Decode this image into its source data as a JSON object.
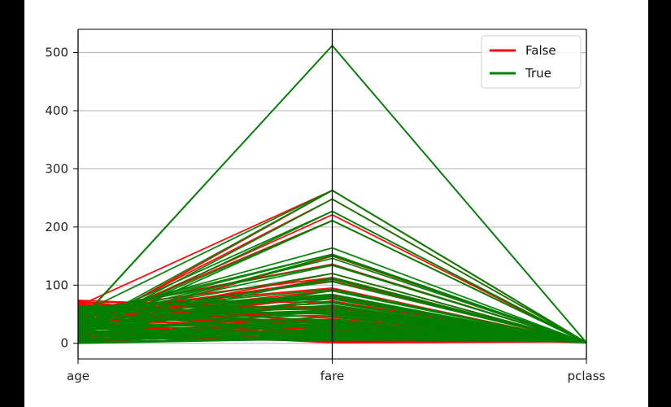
{
  "chart_data": {
    "type": "parallel_coordinates",
    "title": "",
    "xlabel": "",
    "ylabel": "",
    "categories": [
      "age",
      "fare",
      "pclass"
    ],
    "ylim": [
      -27,
      540
    ],
    "yticks": [
      0,
      100,
      200,
      300,
      400,
      500
    ],
    "grid": true,
    "legend": {
      "placement": "top-right",
      "entries": [
        {
          "name": "False",
          "color": "#ff0000"
        },
        {
          "name": "True",
          "color": "#008000"
        }
      ]
    },
    "series": [
      {
        "name": "False",
        "color": "#ff0000",
        "lines": [
          [
            22,
            7,
            3
          ],
          [
            35,
            8,
            3
          ],
          [
            54,
            52,
            1
          ],
          [
            2,
            21,
            3
          ],
          [
            20,
            8,
            3
          ],
          [
            39,
            31,
            3
          ],
          [
            14,
            8,
            3
          ],
          [
            2,
            29,
            3
          ],
          [
            31,
            18,
            2
          ],
          [
            35,
            26,
            2
          ],
          [
            34,
            13,
            2
          ],
          [
            28,
            8,
            3
          ],
          [
            8,
            21,
            3
          ],
          [
            19,
            263,
            1
          ],
          [
            40,
            28,
            1
          ],
          [
            66,
            11,
            2
          ],
          [
            28,
            82,
            1
          ],
          [
            42,
            52,
            1
          ],
          [
            21,
            9,
            3
          ],
          [
            18,
            11,
            2
          ],
          [
            40,
            27,
            1
          ],
          [
            24,
            248,
            1
          ],
          [
            46,
            61,
            1
          ],
          [
            65,
            62,
            1
          ],
          [
            71,
            35,
            1
          ],
          [
            70,
            71,
            1
          ],
          [
            30,
            8,
            3
          ],
          [
            45,
            83,
            1
          ],
          [
            50,
            28,
            1
          ],
          [
            36,
            120,
            1
          ],
          [
            18,
            11,
            3
          ],
          [
            25,
            26,
            3
          ],
          [
            17,
            14,
            3
          ],
          [
            61,
            33,
            1
          ],
          [
            45,
            110,
            1
          ],
          [
            47,
            52,
            1
          ],
          [
            26,
            27,
            3
          ],
          [
            58,
            113,
            1
          ],
          [
            24,
            221,
            1
          ],
          [
            29,
            9,
            3
          ],
          [
            37,
            53,
            1
          ],
          [
            30,
            16,
            2
          ],
          [
            52,
            79,
            1
          ],
          [
            62,
            10,
            2
          ],
          [
            19,
            8,
            3
          ],
          [
            33,
            12,
            3
          ],
          [
            64,
            263,
            1
          ],
          [
            44,
            91,
            1
          ],
          [
            27,
            211,
            1
          ],
          [
            55,
            136,
            1
          ],
          [
            73,
            14,
            1
          ],
          [
            10,
            47,
            3
          ],
          [
            9,
            31,
            3
          ],
          [
            48,
            34,
            1
          ],
          [
            63,
            78,
            1
          ],
          [
            16,
            39,
            3
          ],
          [
            26,
            150,
            1
          ],
          [
            38,
            80,
            1
          ],
          [
            21,
            73,
            2
          ],
          [
            32,
            113,
            1
          ],
          [
            43,
            56,
            1
          ],
          [
            51,
            107,
            1
          ],
          [
            4,
            16,
            3
          ],
          [
            49,
            24,
            2
          ],
          [
            74,
            57,
            1
          ],
          [
            67,
            3,
            3
          ],
          [
            60,
            45,
            1
          ],
          [
            13,
            5,
            3
          ],
          [
            6,
            19,
            3
          ],
          [
            41,
            39,
            1
          ],
          [
            53,
            64,
            1
          ],
          [
            57,
            95,
            1
          ],
          [
            15,
            42,
            3
          ],
          [
            12,
            23,
            3
          ],
          [
            68,
            37,
            1
          ],
          [
            28,
            6,
            3
          ],
          [
            34,
            2,
            3
          ],
          [
            22,
            1,
            3
          ]
        ]
      },
      {
        "name": "True",
        "color": "#008000",
        "lines": [
          [
            38,
            71,
            1
          ],
          [
            26,
            8,
            3
          ],
          [
            35,
            53,
            1
          ],
          [
            27,
            11,
            3
          ],
          [
            14,
            30,
            2
          ],
          [
            4,
            17,
            3
          ],
          [
            58,
            27,
            1
          ],
          [
            55,
            16,
            2
          ],
          [
            36,
            512,
            1
          ],
          [
            35,
            512,
            1
          ],
          [
            50,
            263,
            1
          ],
          [
            24,
            263,
            1
          ],
          [
            17,
            248,
            1
          ],
          [
            30,
            227,
            1
          ],
          [
            18,
            227,
            1
          ],
          [
            22,
            211,
            1
          ],
          [
            45,
            164,
            1
          ],
          [
            44,
            153,
            1
          ],
          [
            49,
            153,
            1
          ],
          [
            15,
            211,
            1
          ],
          [
            19,
            91,
            1
          ],
          [
            1,
            12,
            3
          ],
          [
            3,
            41,
            2
          ],
          [
            0,
            8,
            3
          ],
          [
            5,
            19,
            3
          ],
          [
            28,
            13,
            2
          ],
          [
            40,
            146,
            1
          ],
          [
            23,
            113,
            1
          ],
          [
            53,
            135,
            1
          ],
          [
            31,
            151,
            1
          ],
          [
            63,
            78,
            1
          ],
          [
            60,
            76,
            1
          ],
          [
            48,
            106,
            1
          ],
          [
            39,
            110,
            1
          ],
          [
            21,
            77,
            1
          ],
          [
            16,
            58,
            1
          ],
          [
            33,
            90,
            1
          ],
          [
            29,
            66,
            1
          ],
          [
            52,
            93,
            1
          ],
          [
            62,
            80,
            1
          ],
          [
            42,
            57,
            1
          ],
          [
            34,
            49,
            1
          ],
          [
            25,
            37,
            2
          ],
          [
            32,
            33,
            2
          ],
          [
            12,
            39,
            2
          ],
          [
            8,
            26,
            2
          ],
          [
            6,
            19,
            2
          ],
          [
            2,
            10,
            3
          ],
          [
            0,
            14,
            3
          ],
          [
            11,
            46,
            2
          ],
          [
            13,
            21,
            2
          ],
          [
            20,
            9,
            3
          ],
          [
            37,
            83,
            1
          ],
          [
            43,
            55,
            1
          ],
          [
            47,
            69,
            1
          ],
          [
            54,
            59,
            1
          ],
          [
            56,
            84,
            1
          ],
          [
            41,
            134,
            1
          ],
          [
            46,
            120,
            1
          ],
          [
            51,
            78,
            1
          ],
          [
            7,
            24,
            3
          ],
          [
            9,
            31,
            3
          ],
          [
            10,
            4,
            3
          ],
          [
            57,
            34,
            1
          ],
          [
            59,
            51,
            1
          ],
          [
            61,
            62,
            1
          ],
          [
            26,
            45,
            2
          ],
          [
            30,
            30,
            2
          ],
          [
            36,
            26,
            2
          ],
          [
            39,
            65,
            1
          ],
          [
            44,
            40,
            1
          ],
          [
            22,
            15,
            3
          ]
        ]
      }
    ]
  }
}
